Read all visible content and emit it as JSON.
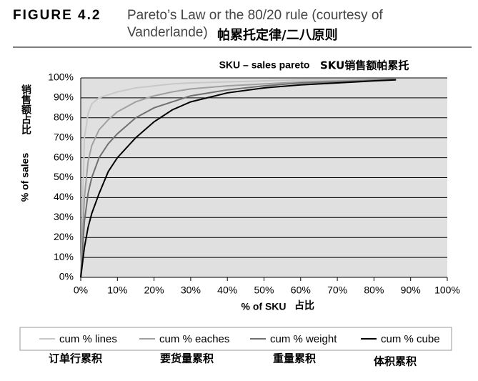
{
  "figure": {
    "label": "FIGURE 4.2",
    "caption_lines": [
      "Pareto’s Law or the 80/20 rule (courtesy of",
      "Vanderlande)"
    ],
    "caption_cn": "帕累托定律/二八原则"
  },
  "chart_data": {
    "type": "line",
    "title": "SKU – sales pareto",
    "title_cn": "SKU销售额帕累托",
    "xlabel": "% of SKU",
    "xlabel_cn": "占比",
    "ylabel": "% of sales",
    "ylabel_cn": "销售额占比",
    "x": [
      0,
      1,
      2,
      3,
      5,
      7.5,
      10,
      15,
      20,
      25,
      30,
      40,
      50,
      60,
      70,
      80,
      86
    ],
    "series": [
      {
        "name": "cum % lines",
        "color": "#c8c8c8",
        "values": [
          0,
          70,
          82,
          87,
          90,
          91.5,
          93,
          95,
          96,
          97,
          97.5,
          98,
          98.5,
          99,
          99,
          99.3,
          99.5
        ]
      },
      {
        "name": "cum % eaches",
        "color": "#a0a0a0",
        "values": [
          0,
          40,
          58,
          66,
          74,
          79,
          83,
          88,
          91,
          93,
          94.5,
          96,
          97,
          98,
          98.5,
          99,
          99.3
        ]
      },
      {
        "name": "cum % weight",
        "color": "#707070",
        "values": [
          0,
          28,
          42,
          50,
          60,
          67,
          72,
          80,
          85,
          88,
          91,
          94,
          96,
          97.5,
          98,
          98.8,
          99.2
        ]
      },
      {
        "name": "cum % cube",
        "color": "#000000",
        "values": [
          0,
          15,
          25,
          32,
          42,
          53,
          60,
          70,
          78,
          84,
          88,
          92.5,
          95,
          96.5,
          97.5,
          98.5,
          99
        ]
      }
    ],
    "legend_notes": [
      "订单行累积",
      "要货量累积",
      "重量累积",
      "体积累积"
    ],
    "xlim": [
      0,
      100
    ],
    "ylim": [
      0,
      100
    ],
    "xticks": [
      {
        "value": 0,
        "label": "0%"
      },
      {
        "value": 10,
        "label": "10%"
      },
      {
        "value": 20,
        "label": "20%"
      },
      {
        "value": 30,
        "label": "30%"
      },
      {
        "value": 40,
        "label": "40%"
      },
      {
        "value": 50,
        "label": "50%"
      },
      {
        "value": 60,
        "label": "60%"
      },
      {
        "value": 70,
        "label": "70%"
      },
      {
        "value": 80,
        "label": "80%"
      },
      {
        "value": 90,
        "label": "90%"
      },
      {
        "value": 100,
        "label": "100%"
      }
    ],
    "yticks": [
      {
        "value": 0,
        "label": "0%"
      },
      {
        "value": 10,
        "label": "10%"
      },
      {
        "value": 20,
        "label": "20%"
      },
      {
        "value": 30,
        "label": "30%"
      },
      {
        "value": 40,
        "label": "40%"
      },
      {
        "value": 50,
        "label": "50%"
      },
      {
        "value": 60,
        "label": "60%"
      },
      {
        "value": 70,
        "label": "70%"
      },
      {
        "value": 80,
        "label": "80%"
      },
      {
        "value": 90,
        "label": "90%"
      },
      {
        "value": 100,
        "label": "100%"
      }
    ],
    "grid": true,
    "plot_background": "#e0e0e0"
  }
}
